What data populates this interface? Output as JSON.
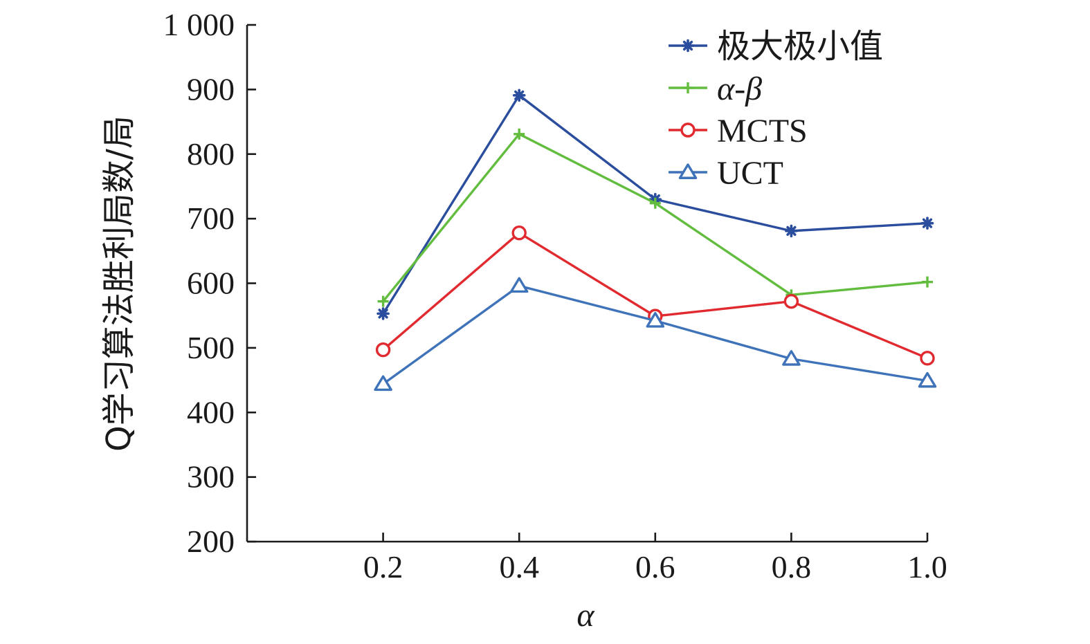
{
  "chart_data": {
    "type": "line",
    "title": "",
    "xlabel": "α",
    "ylabel": "Q学习算法胜利局数/局",
    "x": [
      0.2,
      0.4,
      0.6,
      0.8,
      1.0
    ],
    "x_tick_labels": [
      "0.2",
      "0.4",
      "0.6",
      "0.8",
      "1.0"
    ],
    "xlim": [
      0.0,
      1.0
    ],
    "ylim": [
      200,
      1000
    ],
    "y_ticks": [
      200,
      300,
      400,
      500,
      600,
      700,
      800,
      900,
      1000
    ],
    "y_tick_labels": [
      "200",
      "300",
      "400",
      "500",
      "600",
      "700",
      "800",
      "900",
      "1 000"
    ],
    "grid": false,
    "legend_position": "top-right",
    "series": [
      {
        "name": "极大极小值",
        "color": "#2b4d9e",
        "marker": "asterisk",
        "values": [
          553,
          891,
          730,
          681,
          693
        ]
      },
      {
        "name": "α-β",
        "color": "#62bd3e",
        "marker": "plus",
        "values": [
          572,
          831,
          724,
          582,
          602
        ]
      },
      {
        "name": "MCTS",
        "color": "#e12a2f",
        "marker": "circle",
        "values": [
          497,
          678,
          549,
          572,
          484
        ]
      },
      {
        "name": "UCT",
        "color": "#3f73b9",
        "marker": "triangle",
        "values": [
          444,
          596,
          542,
          483,
          449
        ]
      }
    ]
  }
}
